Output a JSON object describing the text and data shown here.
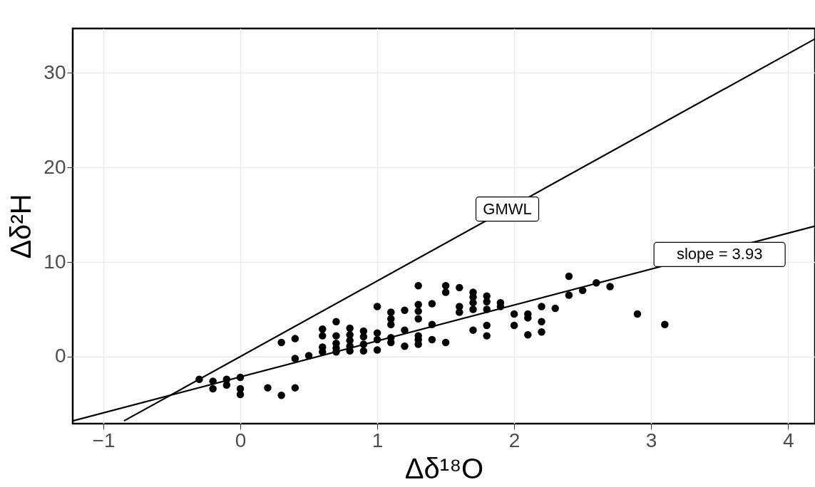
{
  "chart_data": {
    "type": "scatter",
    "xlabel": "Δδ¹⁸O",
    "ylabel": "Δδ²H",
    "xlim": [
      -1.224,
      4.197
    ],
    "ylim": [
      -7.09,
      34.7
    ],
    "xticks": [
      {
        "value": -1,
        "label": "−1"
      },
      0,
      1,
      2,
      3,
      4
    ],
    "yticks": [
      0,
      10,
      20,
      30
    ],
    "grid": true,
    "series": [
      {
        "marker": "circle",
        "color": "#000000",
        "x": [
          -0.3,
          -0.2,
          -0.2,
          -0.1,
          -0.1,
          0,
          0,
          0,
          0.2,
          0.3,
          0.3,
          0.4,
          0.4,
          0.4,
          0.5,
          0.6,
          0.6,
          0.6,
          0.6,
          0.7,
          0.7,
          0.7,
          0.7,
          0.7,
          0.8,
          0.8,
          0.8,
          0.8,
          0.8,
          0.9,
          0.9,
          0.9,
          0.9,
          1.0,
          1.0,
          1.0,
          1.0,
          1.1,
          1.1,
          1.1,
          1.1,
          1.1,
          1.2,
          1.2,
          1.2,
          1.3,
          1.3,
          1.3,
          1.3,
          1.3,
          1.3,
          1.3,
          1.4,
          1.4,
          1.4,
          1.5,
          1.5,
          1.5,
          1.6,
          1.6,
          1.6,
          1.7,
          1.7,
          1.7,
          1.7,
          1.7,
          1.8,
          1.8,
          1.8,
          1.8,
          1.8,
          1.9,
          1.9,
          2.0,
          2.0,
          2.1,
          2.1,
          2.1,
          2.2,
          2.2,
          2.2,
          2.3,
          2.4,
          2.4,
          2.5,
          2.6,
          2.7,
          2.9,
          3.1
        ],
        "values": [
          -2.4,
          -2.6,
          -3.4,
          -2.4,
          -3.0,
          -2.2,
          -3.4,
          -4.0,
          -3.3,
          1.5,
          -4.1,
          1.9,
          -0.2,
          -3.3,
          0.1,
          2.9,
          2.2,
          1.0,
          0.5,
          3.7,
          2.2,
          1.4,
          0.9,
          0.5,
          3.0,
          2.3,
          1.7,
          1.1,
          0.6,
          2.7,
          2.1,
          1.3,
          0.6,
          5.3,
          2.5,
          1.8,
          0.7,
          4.7,
          4.0,
          3.4,
          2.0,
          1.5,
          4.9,
          2.8,
          1.1,
          7.5,
          5.5,
          4.8,
          4.0,
          2.2,
          1.8,
          1.3,
          5.6,
          3.4,
          1.8,
          7.5,
          6.8,
          1.5,
          7.3,
          5.3,
          4.7,
          6.8,
          6.3,
          5.7,
          5.0,
          2.8,
          6.4,
          5.8,
          5.0,
          3.3,
          2.2,
          5.7,
          5.3,
          4.5,
          3.3,
          4.5,
          4.1,
          2.3,
          5.3,
          3.7,
          2.6,
          5.1,
          8.5,
          6.5,
          7.0,
          7.8,
          7.4,
          4.5,
          3.4
        ]
      },
      {
        "type": "line",
        "color": "#000000",
        "x": [
          -0.85,
          4.197
        ],
        "values": [
          -6.8,
          33.6
        ]
      },
      {
        "type": "line",
        "color": "#000000",
        "x": [
          -1.224,
          4.197
        ],
        "values": [
          -6.8,
          13.8
        ]
      }
    ],
    "annotations": [
      {
        "text": "GMWL",
        "x": 1.95,
        "y": 15.6
      },
      {
        "text": "slope = 3.93",
        "x": 3.5,
        "y": 10.8
      }
    ]
  }
}
